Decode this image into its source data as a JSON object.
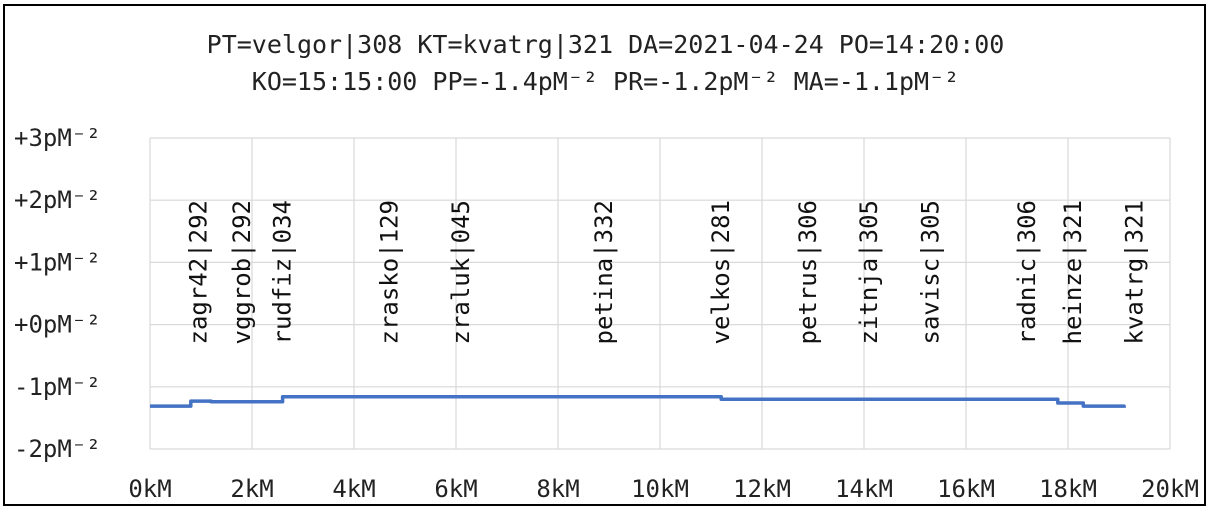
{
  "chart_data": {
    "type": "line",
    "title": "PT=velgor|308 KT=kvatrg|321 DA=2021-04-24 PO=14:20:00",
    "subtitle": "KO=15:15:00 PP=-1.4pM⁻² PR=-1.2pM⁻² MA=-1.1pM⁻²",
    "xlabel": "",
    "ylabel": "",
    "xlim": [
      0,
      20
    ],
    "ylim": [
      -2,
      3
    ],
    "grid": true,
    "line_color": "#4472C4",
    "x_ticks": [
      "0kM",
      "2kM",
      "4kM",
      "6kM",
      "8kM",
      "10kM",
      "12kM",
      "14kM",
      "16kM",
      "18kM",
      "20kM"
    ],
    "y_ticks": [
      "+3pM⁻²",
      "+2pM⁻²",
      "+1pM⁻²",
      "+0pM⁻²",
      "-1pM⁻²",
      "-2pM⁻²"
    ],
    "series": [
      {
        "x": [
          0.0,
          0.8,
          0.8,
          1.2,
          1.2,
          2.6,
          2.6,
          11.2,
          11.2,
          17.8,
          17.8,
          18.3,
          18.3,
          19.1,
          19.1
        ],
        "y": [
          -1.31,
          -1.31,
          -1.23,
          -1.23,
          -1.24,
          -1.24,
          -1.16,
          -1.16,
          -1.2,
          -1.2,
          -1.26,
          -1.26,
          -1.31,
          -1.31,
          -1.34
        ]
      }
    ],
    "annotations": [
      {
        "text": "zagr42|292",
        "x": 0.95
      },
      {
        "text": "vggrob|292",
        "x": 1.8
      },
      {
        "text": "rudfiz|034",
        "x": 2.6
      },
      {
        "text": "zrasko|129",
        "x": 4.7
      },
      {
        "text": "zraluk|045",
        "x": 6.1
      },
      {
        "text": "petina|332",
        "x": 8.9
      },
      {
        "text": "velkos|281",
        "x": 11.2
      },
      {
        "text": "petrus|306",
        "x": 12.9
      },
      {
        "text": "zitnja|305",
        "x": 14.1
      },
      {
        "text": "savisc|305",
        "x": 15.3
      },
      {
        "text": "radnic|306",
        "x": 17.2
      },
      {
        "text": "heinze|321",
        "x": 18.1
      },
      {
        "text": "kvatrg|321",
        "x": 19.3
      }
    ]
  }
}
